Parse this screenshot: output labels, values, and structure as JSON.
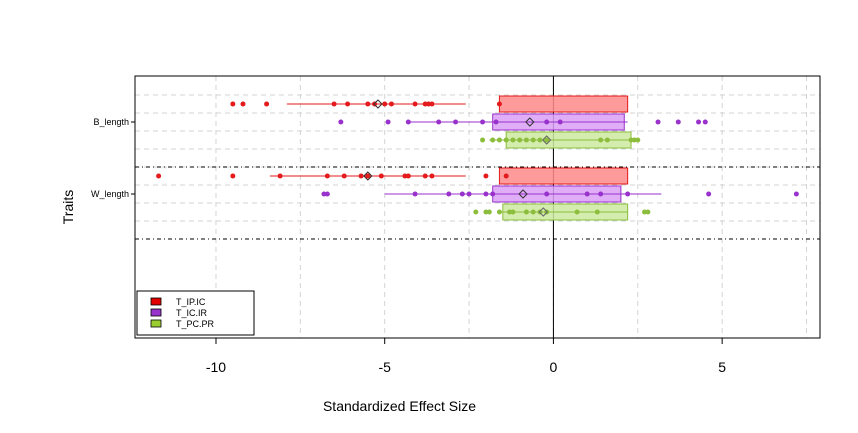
{
  "chart_data": {
    "type": "scatter",
    "xlabel": "Standardized Effect Size",
    "ylabel": "Traits",
    "xlim": [
      -12.4,
      7.9
    ],
    "xticks": [
      -10,
      -5,
      0,
      5
    ],
    "grid": true,
    "legend_position": "bottom-left",
    "categories": [
      "B_length",
      "W_length"
    ],
    "series": [
      {
        "name": "T_IP.IC",
        "color": "#e41a1c",
        "fill": "#ff8a8a",
        "groups": [
          {
            "category": "B_length",
            "points": [
              -9.5,
              -9.2,
              -8.5,
              -6.5,
              -6.1,
              -5.5,
              -5.3,
              -5.0,
              -4.8,
              -4.1,
              -3.8,
              -3.7,
              -3.6,
              -1.6
            ],
            "mean": -5.2,
            "whisker": [
              -7.9,
              -2.6
            ],
            "box": [
              -1.6,
              2.2
            ]
          },
          {
            "category": "W_length",
            "points": [
              -11.7,
              -9.5,
              -8.1,
              -6.7,
              -6.2,
              -5.7,
              -5.5,
              -5.1,
              -4.4,
              -4.3,
              -3.8,
              -3.6,
              -2.0,
              -1.4
            ],
            "mean": -5.5,
            "whisker": [
              -8.4,
              -2.6
            ],
            "box": [
              -1.6,
              2.2
            ]
          }
        ]
      },
      {
        "name": "T_IC.IR",
        "color": "#9932cc",
        "fill": "#d9a0f5",
        "groups": [
          {
            "category": "B_length",
            "points": [
              -6.3,
              -4.9,
              -4.3,
              -3.4,
              -2.9,
              -2.1,
              -1.7,
              -0.2,
              0.2,
              3.1,
              3.7,
              4.3,
              4.5
            ],
            "mean": -0.7,
            "whisker": [
              -4.3,
              2.2
            ],
            "box": [
              -1.8,
              2.1
            ]
          },
          {
            "category": "W_length",
            "points": [
              -6.8,
              -6.7,
              -4.1,
              -3.1,
              -2.7,
              -2.5,
              -2.0,
              -1.8,
              -0.2,
              1.0,
              1.4,
              2.2,
              4.6,
              7.2
            ],
            "mean": -0.9,
            "whisker": [
              -5.0,
              3.2
            ],
            "box": [
              -1.8,
              2.0
            ]
          }
        ]
      },
      {
        "name": "T_PC.PR",
        "color": "#8cbd3c",
        "fill": "#cdeaa0",
        "groups": [
          {
            "category": "B_length",
            "points": [
              -2.1,
              -1.8,
              -1.6,
              -1.4,
              -1.2,
              -1.0,
              -0.8,
              -0.6,
              -0.4,
              -0.2,
              1.4,
              1.6,
              2.3,
              2.4,
              2.5
            ],
            "mean": -0.2,
            "whisker": [
              -1.9,
              2.3
            ],
            "box": [
              -1.4,
              2.3
            ]
          },
          {
            "category": "W_length",
            "points": [
              -2.3,
              -2.0,
              -1.9,
              -1.6,
              -1.3,
              -1.2,
              -0.8,
              -0.6,
              -0.4,
              -0.2,
              0.7,
              1.3,
              2.7,
              2.8
            ],
            "mean": -0.3,
            "whisker": [
              -1.6,
              2.2
            ],
            "box": [
              -1.5,
              2.2
            ]
          }
        ]
      }
    ]
  }
}
